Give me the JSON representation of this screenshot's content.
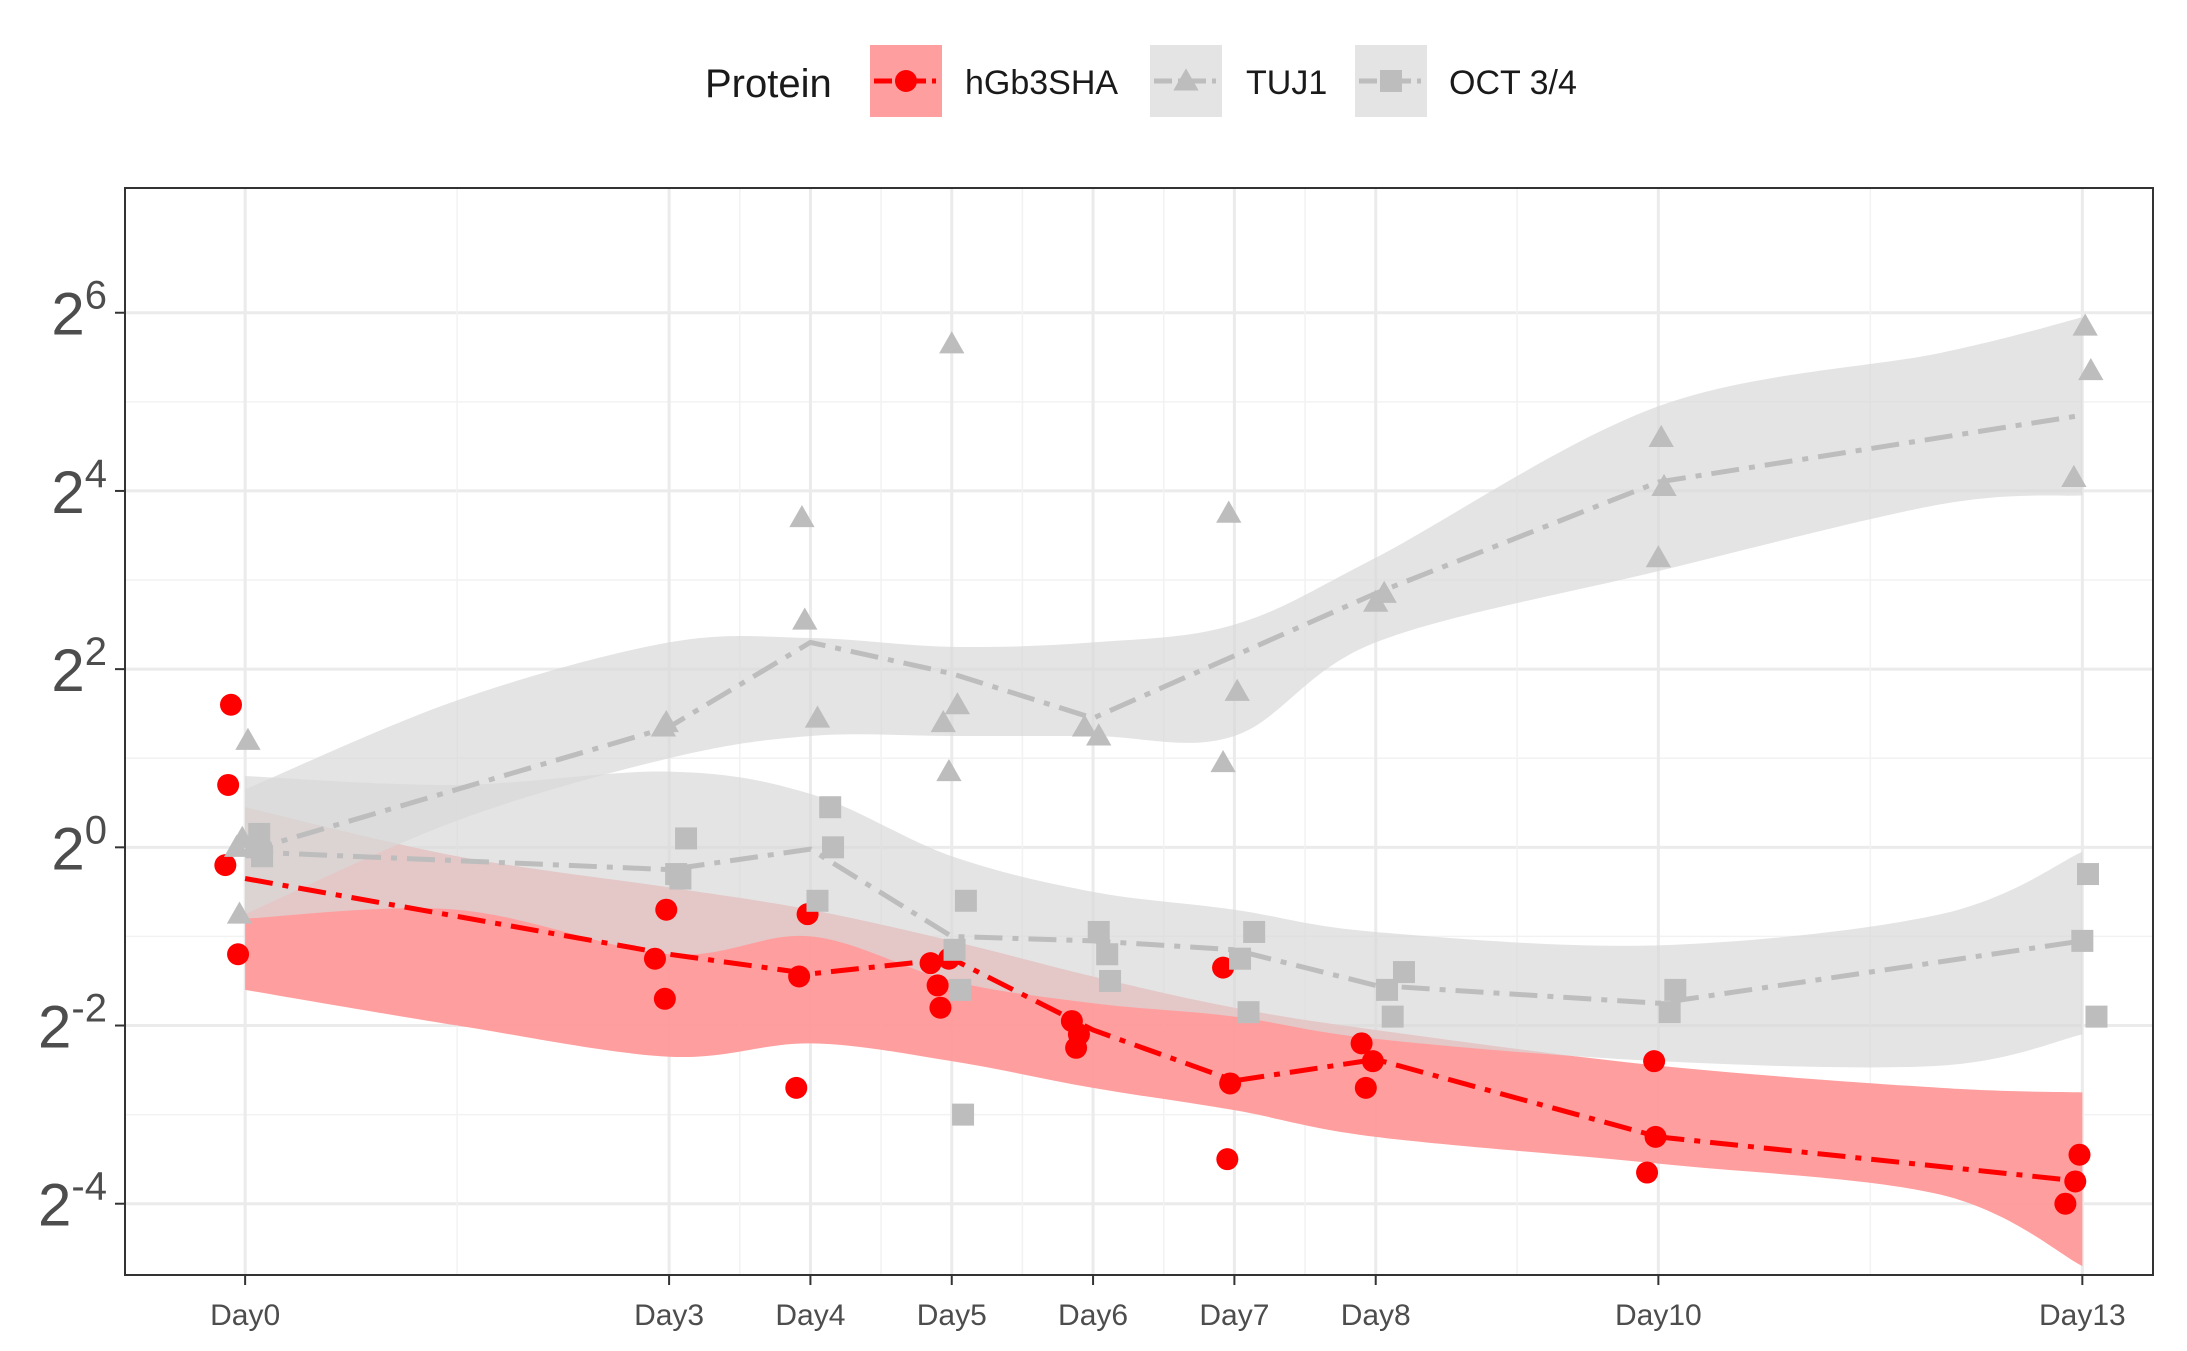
{
  "chart_data": {
    "type": "scatter",
    "title": "",
    "xlabel": "",
    "ylabel": "",
    "categories": [
      "Day0",
      "Day3",
      "Day4",
      "Day5",
      "Day6",
      "Day7",
      "Day8",
      "Day10",
      "Day13"
    ],
    "x_days": [
      0,
      3,
      4,
      5,
      6,
      7,
      8,
      10,
      13
    ],
    "y_scale": "log2",
    "y_ticks": [
      -4,
      -2,
      0,
      2,
      4,
      6
    ],
    "ylim_log2": [
      -4.8,
      7.4
    ],
    "xlim_days": [
      -0.85,
      13.5
    ],
    "grid": true,
    "legend": {
      "title": "Protein",
      "position": "top"
    },
    "series": [
      {
        "name": "hGb3SHA",
        "color": "#ff0000",
        "fill": "#ff9999",
        "marker": "circle",
        "points": [
          [
            -0.1,
            1.6
          ],
          [
            -0.12,
            0.7
          ],
          [
            -0.14,
            -0.2
          ],
          [
            -0.05,
            -1.2
          ],
          [
            2.9,
            -1.25
          ],
          [
            2.98,
            -0.7
          ],
          [
            2.97,
            -1.7
          ],
          [
            3.9,
            -2.7
          ],
          [
            3.92,
            -1.45
          ],
          [
            3.98,
            -0.75
          ],
          [
            4.85,
            -1.3
          ],
          [
            4.9,
            -1.55
          ],
          [
            4.92,
            -1.8
          ],
          [
            4.98,
            -1.25
          ],
          [
            5.85,
            -1.95
          ],
          [
            5.88,
            -2.25
          ],
          [
            5.9,
            -2.1
          ],
          [
            6.92,
            -1.35
          ],
          [
            6.95,
            -3.5
          ],
          [
            6.97,
            -2.65
          ],
          [
            7.9,
            -2.2
          ],
          [
            7.93,
            -2.7
          ],
          [
            7.98,
            -2.4
          ],
          [
            9.92,
            -3.65
          ],
          [
            9.97,
            -2.4
          ],
          [
            9.98,
            -3.25
          ],
          [
            12.88,
            -4.0
          ],
          [
            12.95,
            -3.75
          ],
          [
            12.98,
            -3.45
          ]
        ],
        "trend": [
          [
            0,
            -0.35
          ],
          [
            3,
            -1.2
          ],
          [
            4,
            -1.42
          ],
          [
            5,
            -1.25
          ],
          [
            6,
            -2.05
          ],
          [
            7,
            -2.62
          ],
          [
            8,
            -2.38
          ],
          [
            10,
            -3.25
          ],
          [
            13,
            -3.75
          ]
        ],
        "band_upper": [
          [
            0,
            0.45
          ],
          [
            1.5,
            -0.1
          ],
          [
            3,
            -0.45
          ],
          [
            4,
            -0.7
          ],
          [
            5,
            -1.05
          ],
          [
            6,
            -1.45
          ],
          [
            7,
            -1.8
          ],
          [
            8,
            -2.05
          ],
          [
            10,
            -2.45
          ],
          [
            12,
            -2.7
          ],
          [
            13,
            -2.75
          ]
        ],
        "band_lower": [
          [
            0,
            -1.6
          ],
          [
            1.5,
            -2.0
          ],
          [
            3,
            -2.35
          ],
          [
            4,
            -2.2
          ],
          [
            5,
            -2.4
          ],
          [
            6,
            -2.7
          ],
          [
            7,
            -2.95
          ],
          [
            8,
            -3.25
          ],
          [
            10,
            -3.55
          ],
          [
            12,
            -3.9
          ],
          [
            13,
            -4.7
          ]
        ]
      },
      {
        "name": "TUJ1",
        "color": "#bdbdbd",
        "fill": "#d9d9d9",
        "marker": "triangle",
        "points": [
          [
            -0.02,
            0.1
          ],
          [
            -0.04,
            -0.75
          ],
          [
            -0.06,
            0.0
          ],
          [
            0.02,
            1.2
          ],
          [
            2.96,
            1.35
          ],
          [
            2.98,
            1.4
          ],
          [
            3.94,
            3.7
          ],
          [
            3.96,
            2.55
          ],
          [
            4.05,
            1.45
          ],
          [
            4.94,
            1.4
          ],
          [
            4.98,
            0.85
          ],
          [
            5.0,
            5.65
          ],
          [
            5.04,
            1.6
          ],
          [
            5.94,
            1.35
          ],
          [
            6.04,
            1.25
          ],
          [
            6.92,
            0.95
          ],
          [
            6.96,
            3.75
          ],
          [
            7.02,
            1.75
          ],
          [
            8.0,
            2.75
          ],
          [
            8.06,
            2.85
          ],
          [
            10.0,
            3.25
          ],
          [
            10.02,
            4.6
          ],
          [
            10.04,
            4.05
          ],
          [
            12.94,
            4.15
          ],
          [
            13.02,
            5.85
          ],
          [
            13.06,
            5.35
          ]
        ],
        "trend": [
          [
            0,
            -0.05
          ],
          [
            3,
            1.35
          ],
          [
            4,
            2.3
          ],
          [
            5,
            1.95
          ],
          [
            6,
            1.45
          ],
          [
            7,
            2.15
          ],
          [
            8,
            2.85
          ],
          [
            10,
            4.1
          ],
          [
            13,
            4.85
          ]
        ],
        "band_upper": [
          [
            0,
            0.65
          ],
          [
            1.5,
            1.65
          ],
          [
            3,
            2.3
          ],
          [
            4,
            2.35
          ],
          [
            5,
            2.25
          ],
          [
            6,
            2.3
          ],
          [
            7,
            2.5
          ],
          [
            8,
            3.25
          ],
          [
            10,
            4.95
          ],
          [
            12,
            5.55
          ],
          [
            13,
            5.95
          ]
        ],
        "band_lower": [
          [
            0,
            -0.75
          ],
          [
            1.5,
            0.3
          ],
          [
            3,
            1.0
          ],
          [
            4,
            1.25
          ],
          [
            5,
            1.25
          ],
          [
            6,
            1.25
          ],
          [
            7,
            1.25
          ],
          [
            8,
            2.3
          ],
          [
            10,
            3.1
          ],
          [
            12,
            3.85
          ],
          [
            13,
            3.95
          ]
        ]
      },
      {
        "name": "OCT 3/4",
        "color": "#bdbdbd",
        "fill": "#d9d9d9",
        "marker": "square",
        "points": [
          [
            0.08,
            0.0
          ],
          [
            0.12,
            -0.1
          ],
          [
            0.1,
            0.15
          ],
          [
            3.05,
            -0.3
          ],
          [
            3.08,
            -0.35
          ],
          [
            3.12,
            0.1
          ],
          [
            4.05,
            -0.6
          ],
          [
            4.14,
            0.45
          ],
          [
            4.16,
            0.0
          ],
          [
            5.02,
            -1.15
          ],
          [
            5.06,
            -1.6
          ],
          [
            5.08,
            -3.0
          ],
          [
            5.1,
            -0.6
          ],
          [
            6.04,
            -0.95
          ],
          [
            6.1,
            -1.2
          ],
          [
            6.12,
            -1.5
          ],
          [
            7.04,
            -1.25
          ],
          [
            7.1,
            -1.85
          ],
          [
            7.14,
            -0.95
          ],
          [
            8.08,
            -1.6
          ],
          [
            8.12,
            -1.9
          ],
          [
            8.2,
            -1.4
          ],
          [
            10.08,
            -1.85
          ],
          [
            10.12,
            -1.6
          ],
          [
            13.0,
            -1.05
          ],
          [
            13.04,
            -0.3
          ],
          [
            13.1,
            -1.9
          ]
        ],
        "trend": [
          [
            0,
            -0.05
          ],
          [
            3,
            -0.25
          ],
          [
            4,
            -0.02
          ],
          [
            5,
            -1.0
          ],
          [
            6,
            -1.05
          ],
          [
            7,
            -1.15
          ],
          [
            8,
            -1.55
          ],
          [
            10,
            -1.75
          ],
          [
            13,
            -1.05
          ]
        ],
        "band_upper": [
          [
            0,
            0.8
          ],
          [
            1.5,
            0.7
          ],
          [
            3,
            0.85
          ],
          [
            4,
            0.6
          ],
          [
            5,
            -0.1
          ],
          [
            6,
            -0.5
          ],
          [
            7,
            -0.7
          ],
          [
            8,
            -0.95
          ],
          [
            10,
            -1.1
          ],
          [
            12,
            -0.75
          ],
          [
            13,
            -0.05
          ]
        ],
        "band_lower": [
          [
            0,
            -0.8
          ],
          [
            1.5,
            -0.7
          ],
          [
            3,
            -1.2
          ],
          [
            4,
            -1.0
          ],
          [
            5,
            -1.5
          ],
          [
            6,
            -1.75
          ],
          [
            7,
            -1.9
          ],
          [
            8,
            -2.15
          ],
          [
            10,
            -2.4
          ],
          [
            12,
            -2.45
          ],
          [
            13,
            -2.1
          ]
        ]
      }
    ]
  }
}
